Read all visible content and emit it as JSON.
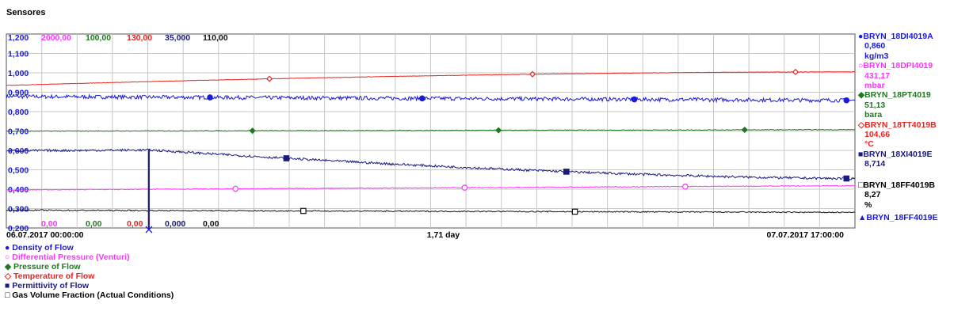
{
  "title": "Sensores",
  "colors": {
    "blue": "#1a1adc",
    "magenta": "#ff33ff",
    "green": "#1f7a1f",
    "red": "#e8241f",
    "navy": "#1a1a80",
    "black": "#111111",
    "grid": "#c8c8c8"
  },
  "chart_data": {
    "type": "line",
    "x_axis": {
      "start_label": "06.07.2017 00:00:00",
      "mid_label": "1,71 day",
      "end_label": "07.07.2017 17:00:00"
    },
    "y_ticks": [
      "1,200",
      "1,100",
      "1,000",
      "0,900",
      "0,800",
      "0,700",
      "0,600",
      "0,500",
      "0,400",
      "0,300",
      "0,200"
    ],
    "primary_range": [
      0.2,
      1.2
    ],
    "axis_scales": [
      {
        "top": "1,200",
        "bottom": "0,200",
        "color": "#1a1adc"
      },
      {
        "top": "2000,00",
        "bottom": "0,00",
        "color": "#ff33ff"
      },
      {
        "top": "100,00",
        "bottom": "0,00",
        "color": "#1f7a1f"
      },
      {
        "top": "130,00",
        "bottom": "0,00",
        "color": "#e8241f"
      },
      {
        "top": "35,000",
        "bottom": "0,000",
        "color": "#1a1a80"
      },
      {
        "top": "110,00",
        "bottom": "0,00",
        "color": "#111111"
      }
    ],
    "series": [
      {
        "tag": "BRYN_18DI4019A",
        "name": "Density of Flow",
        "value": "0,860",
        "unit": "kg/m3",
        "color": "#1a1adc",
        "marker": "circle-filled",
        "start": 0.878,
        "end": 0.858,
        "noise": 0.01,
        "marker_at": [
          0.24,
          0.49,
          0.74,
          0.99
        ]
      },
      {
        "tag": "BRYN_18DPI4019",
        "name": "Differential Pressure (Venturi)",
        "value": "431,17",
        "unit": "mbar",
        "color": "#ff33ff",
        "marker": "circle-open",
        "start": 0.396,
        "end": 0.418,
        "noise": 0.002,
        "marker_at": [
          0.27,
          0.54,
          0.8
        ]
      },
      {
        "tag": "BRYN_18PT4019",
        "name": "Pressure of Flow",
        "value": "51,13",
        "unit": "bara",
        "color": "#1f7a1f",
        "marker": "diamond-filled",
        "start": 0.699,
        "end": 0.707,
        "noise": 0.002,
        "marker_at": [
          0.29,
          0.58,
          0.87
        ]
      },
      {
        "tag": "BRYN_18TT4019B",
        "name": "Temperature of Flow",
        "value": "104,66",
        "unit": "°C",
        "color": "#e8241f",
        "marker": "diamond-open",
        "start": 0.935,
        "end": 1.005,
        "noise": 0.001,
        "marker_at": [
          0.31,
          0.62,
          0.93
        ]
      },
      {
        "tag": "BRYN_18XI4019E",
        "name": "Permittivity of Flow",
        "value": "8,714",
        "unit": "",
        "color": "#1a1a80",
        "marker": "square-filled",
        "start": 0.598,
        "end": 0.455,
        "noise": 0.006,
        "marker_at": [
          0.33,
          0.66,
          0.99
        ]
      },
      {
        "tag": "BRYN_18FF4019B",
        "name": "Gas Volume Fraction (Actual Conditions)",
        "value": "8,27",
        "unit": "%",
        "color": "#111111",
        "marker": "square-open",
        "start": 0.292,
        "end": 0.28,
        "noise": 0.003,
        "marker_at": [
          0.35,
          0.67
        ]
      }
    ],
    "extra_series": {
      "tag": "BRYN_18FF4019E",
      "color": "#1a1adc",
      "marker": "triangle-filled"
    },
    "grid": true,
    "legend": "bottom-left and right"
  }
}
